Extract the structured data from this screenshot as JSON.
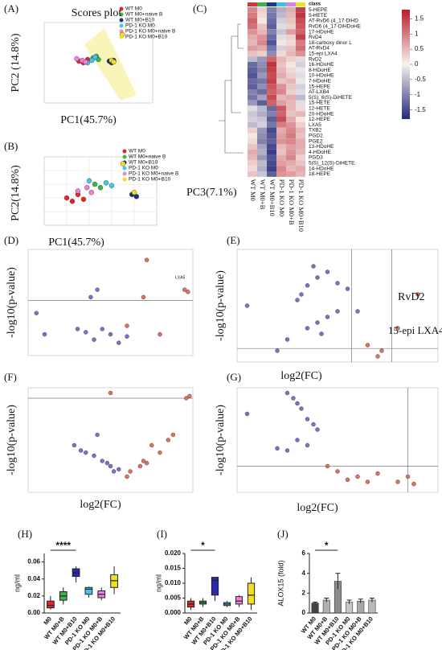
{
  "chart_data": [
    {
      "type": "scatter",
      "panel": "(A)",
      "title": "Scores plot",
      "xlabel": "PC1(45.7%)",
      "ylabel": "PC2 (14.8%)",
      "xlim": [
        0,
        100
      ],
      "ylim": [
        0,
        100
      ],
      "series": [
        {
          "name": "WT M0",
          "color": "#e8262a",
          "x": [
            32,
            36,
            40
          ],
          "y": [
            52,
            50,
            54
          ]
        },
        {
          "name": "WT M0+naive B",
          "color": "#3cb44b",
          "x": [
            45,
            48,
            50
          ],
          "y": [
            56,
            58,
            54
          ]
        },
        {
          "name": "WT M0+B10",
          "color": "#1f2f80",
          "x": [
            60,
            62,
            64
          ],
          "y": [
            52,
            50,
            53
          ]
        },
        {
          "name": "PD-1 KO M0",
          "color": "#40c8e8",
          "x": [
            40,
            44,
            47
          ],
          "y": [
            50,
            53,
            57
          ]
        },
        {
          "name": "PD-1 KO M0+naive B",
          "color": "#f080e0",
          "x": [
            30,
            35,
            38
          ],
          "y": [
            55,
            53,
            51
          ]
        },
        {
          "name": "PD-1 KO M0+B10",
          "color": "#f0e020",
          "x": [
            62,
            64,
            72
          ],
          "y": [
            53,
            51,
            85
          ]
        }
      ]
    },
    {
      "type": "scatter",
      "panel": "(B)",
      "xlabel": "PC1(45.7%)",
      "ylabel": "PC2(14.8%)",
      "zlabel": "PC3(7.1%)",
      "xlim": [
        0,
        100
      ],
      "ylim": [
        0,
        100
      ],
      "series": [
        {
          "name": "WT M0",
          "color": "#e8262a",
          "x": [
            20,
            25,
            30,
            35
          ],
          "y": [
            40,
            35,
            45,
            38
          ]
        },
        {
          "name": "WT M0+naive B",
          "color": "#3cb44b",
          "x": [
            45,
            50
          ],
          "y": [
            60,
            55
          ]
        },
        {
          "name": "WT M0+B10",
          "color": "#1f2f80",
          "x": [
            78,
            82
          ],
          "y": [
            45,
            42
          ]
        },
        {
          "name": "PD-1 KO M0",
          "color": "#40c8e8",
          "x": [
            40,
            55,
            60
          ],
          "y": [
            65,
            62,
            58
          ]
        },
        {
          "name": "PD-1 KO M0+naive B",
          "color": "#f080e0",
          "x": [
            30,
            38,
            42
          ],
          "y": [
            50,
            55,
            48
          ]
        },
        {
          "name": "PD-1 KO M0+B10",
          "color": "#f0e020",
          "x": [
            70,
            80
          ],
          "y": [
            90,
            48
          ]
        }
      ]
    },
    {
      "type": "heatmap",
      "panel": "(C)",
      "legend_title": "class",
      "class_colors": [
        "#e0303c",
        "#3cb44b",
        "#1f3b8f",
        "#3fc0e0",
        "#e080e0",
        "#f0e020"
      ],
      "columns": [
        "WT M0",
        "WT M0+B",
        "WT M0+B10",
        "PD-1 KO M0",
        "PD-1 KO M0+B",
        "PD-1 KO M0+B10"
      ],
      "rows": [
        "5-HEPE",
        "5-HETE",
        "AT-RvD6 (4_17-DiHD",
        "RvD6 (4_17-DiHDoHE",
        "17-HDoHE",
        "RvD4",
        "18-carboxy dinor L",
        "AT-RvD4",
        "15-epi LXA4",
        "RvD2",
        "16-HDoHE",
        "8-HDoHE",
        "10-HDoHE",
        "7-HDoHE",
        "15-HEPE",
        "AT-LXB4",
        "5(S)_6(S)-DiHETE",
        "15-HETE",
        "12-HETE",
        "20-HDoHE",
        "12-HEPE",
        "LXA5",
        "TXB2",
        "PGD2",
        "PGE2",
        "13-HDoHE",
        "4-HDoHE",
        "PGD3",
        "5(S)_12(S)-DiHETE",
        "14-HDoHE",
        "18-HEPE"
      ],
      "values": [
        [
          0.9,
          0.3,
          -1.0,
          -0.6,
          0.6,
          1.5
        ],
        [
          1.0,
          0.2,
          -1.1,
          -0.5,
          0.5,
          1.6
        ],
        [
          1.2,
          0.1,
          -1.2,
          -0.3,
          0.4,
          1.4
        ],
        [
          1.1,
          0.4,
          -1.3,
          -0.2,
          0.3,
          1.3
        ],
        [
          0.8,
          0.5,
          -1.0,
          -0.4,
          0.7,
          1.2
        ],
        [
          0.6,
          0.8,
          -1.2,
          -0.2,
          0.3,
          1.5
        ],
        [
          0.5,
          0.9,
          -1.4,
          0.1,
          0.2,
          1.0
        ],
        [
          0.7,
          0.6,
          -1.1,
          -0.3,
          0.4,
          1.1
        ],
        [
          0.4,
          0.3,
          -0.9,
          0.2,
          0.5,
          0.8
        ],
        [
          -0.5,
          -0.8,
          1.2,
          0.5,
          0.3,
          -0.2
        ],
        [
          -1.2,
          -0.9,
          1.6,
          0.4,
          0.1,
          -0.3
        ],
        [
          -1.3,
          -1.0,
          1.5,
          0.5,
          0.2,
          -0.1
        ],
        [
          -1.4,
          -0.8,
          1.4,
          0.6,
          0.3,
          -0.2
        ],
        [
          -1.2,
          -1.1,
          1.5,
          0.4,
          0.5,
          -0.1
        ],
        [
          -1.3,
          -0.9,
          1.3,
          0.8,
          0.4,
          -0.3
        ],
        [
          -1.0,
          -1.2,
          1.2,
          0.9,
          0.3,
          -0.2
        ],
        [
          -1.1,
          -0.7,
          1.4,
          0.5,
          0.6,
          -0.5
        ],
        [
          -0.8,
          -1.3,
          1.2,
          0.7,
          0.5,
          -0.2
        ],
        [
          -0.2,
          -0.5,
          -1.2,
          1.3,
          0.5,
          0.2
        ],
        [
          -0.4,
          -0.6,
          -1.0,
          1.2,
          0.4,
          0.5
        ],
        [
          -0.3,
          -0.4,
          -1.3,
          1.4,
          0.6,
          0.1
        ],
        [
          -0.5,
          -0.3,
          -1.1,
          1.0,
          0.8,
          0.3
        ],
        [
          0.3,
          -0.8,
          -1.5,
          0.6,
          0.9,
          0.5
        ],
        [
          0.1,
          -0.9,
          -1.4,
          0.7,
          1.0,
          0.4
        ],
        [
          0.2,
          -1.0,
          -1.3,
          0.8,
          0.9,
          0.6
        ],
        [
          0.4,
          -0.7,
          -1.5,
          0.5,
          0.7,
          0.6
        ],
        [
          0.6,
          -0.6,
          -1.6,
          0.4,
          0.8,
          0.5
        ],
        [
          0.5,
          -0.8,
          -1.4,
          0.6,
          0.9,
          0.3
        ],
        [
          0.3,
          -0.5,
          -1.5,
          0.7,
          0.6,
          0.4
        ],
        [
          0.2,
          -0.6,
          -1.6,
          0.9,
          0.5,
          0.6
        ],
        [
          0.4,
          -0.4,
          -1.3,
          0.8,
          0.7,
          0.5
        ]
      ],
      "clim": [
        -1.8,
        1.8
      ],
      "cticks": [
        1.5,
        1,
        0.5,
        0,
        -0.5,
        -1,
        -1.5
      ]
    },
    {
      "type": "scatter",
      "panel": "(D)",
      "ylabel": "-log10(p-value)",
      "xlim": [
        0,
        100
      ],
      "ylim": [
        0,
        100
      ],
      "hline": 52,
      "vlines": [],
      "point_labels": [
        "LXA5"
      ],
      "series": [
        {
          "color": "#7b6fd0",
          "x": [
            5,
            10,
            30,
            35,
            40,
            45,
            50,
            55,
            60,
            38,
            42
          ],
          "y": [
            40,
            20,
            25,
            22,
            15,
            25,
            20,
            12,
            18,
            55,
            62
          ]
        },
        {
          "color": "#e07060",
          "x": [
            95,
            97,
            72,
            70,
            60,
            80
          ],
          "y": [
            62,
            60,
            90,
            55,
            28,
            20
          ]
        }
      ]
    },
    {
      "type": "scatter",
      "panel": "(E)",
      "ylabel": "-log10(p-value)",
      "xlabel": "log2(FC)",
      "xlim": [
        0,
        100
      ],
      "ylim": [
        0,
        100
      ],
      "hline": 12,
      "vlines": [
        57,
        77
      ],
      "annotations": [
        "RvD2",
        "15-epi LXA4"
      ],
      "series": [
        {
          "color": "#7b6fd0",
          "x": [
            5,
            30,
            32,
            35,
            40,
            38,
            45,
            50,
            55,
            45,
            50,
            35,
            40,
            42,
            60,
            25,
            20
          ],
          "y": [
            50,
            55,
            60,
            68,
            75,
            85,
            80,
            70,
            65,
            40,
            45,
            30,
            35,
            25,
            45,
            20,
            10
          ]
        },
        {
          "color": "#e07060",
          "x": [
            65,
            70,
            90,
            72,
            80
          ],
          "y": [
            15,
            5,
            60,
            10,
            30
          ]
        }
      ]
    },
    {
      "type": "scatter",
      "panel": "(F)",
      "ylabel": "-log10(p-value)",
      "xlabel": "log2(FC)",
      "xlim": [
        0,
        100
      ],
      "ylim": [
        0,
        100
      ],
      "hline": 90,
      "vlines": [],
      "series": [
        {
          "color": "#7b6fd0",
          "x": [
            28,
            32,
            35,
            40,
            45,
            48,
            50,
            52,
            55,
            42
          ],
          "y": [
            45,
            40,
            38,
            35,
            30,
            28,
            25,
            20,
            22,
            55
          ]
        },
        {
          "color": "#e07060",
          "x": [
            60,
            62,
            68,
            70,
            72,
            75,
            80,
            85,
            88,
            96,
            98,
            50
          ],
          "y": [
            15,
            20,
            25,
            30,
            28,
            45,
            38,
            50,
            55,
            90,
            92,
            95
          ]
        }
      ]
    },
    {
      "type": "scatter",
      "panel": "(G)",
      "ylabel": "-log10(p-value)",
      "xlabel": "log2(FC)",
      "xlim": [
        0,
        100
      ],
      "ylim": [
        0,
        100
      ],
      "hline": 25,
      "vlines": [
        85
      ],
      "series": [
        {
          "color": "#7b6fd0",
          "x": [
            5,
            25,
            28,
            30,
            32,
            35,
            38,
            40,
            30,
            35,
            20,
            25
          ],
          "y": [
            75,
            95,
            90,
            85,
            80,
            70,
            65,
            60,
            50,
            45,
            42,
            40
          ]
        },
        {
          "color": "#e07060",
          "x": [
            45,
            50,
            55,
            60,
            65,
            70,
            80,
            85,
            88
          ],
          "y": [
            25,
            20,
            12,
            15,
            10,
            18,
            10,
            15,
            8
          ]
        }
      ]
    },
    {
      "type": "box",
      "panel": "(H)",
      "ylabel": "ng/ml",
      "annotation": "****",
      "categories": [
        "M0",
        "WT M0+B",
        "WT M0+B10",
        "PD-1 KO M0",
        "PD-1 KO M0+B",
        "PD-1 KO M0+B10"
      ],
      "colors": [
        "#e8262a",
        "#3cb44b",
        "#2a2ab0",
        "#40c8e8",
        "#f080e0",
        "#f0e020"
      ],
      "values": [
        [
          0.004,
          0.006,
          0.009,
          0.014,
          0.02
        ],
        [
          0.01,
          0.015,
          0.02,
          0.025,
          0.03
        ],
        [
          0.036,
          0.043,
          0.047,
          0.052,
          0.055
        ],
        [
          0.018,
          0.022,
          0.028,
          0.03,
          0.031
        ],
        [
          0.015,
          0.018,
          0.022,
          0.026,
          0.03
        ],
        [
          0.022,
          0.03,
          0.038,
          0.045,
          0.055
        ]
      ],
      "ylim": [
        0,
        0.07
      ],
      "yticks": [
        {
          "value": 0,
          "label": "0.00"
        },
        {
          "value": 0.02,
          "label": "0.02"
        },
        {
          "value": 0.04,
          "label": "0.04"
        },
        {
          "value": 0.06,
          "label": "0.06"
        }
      ]
    },
    {
      "type": "box",
      "panel": "(I)",
      "ylabel": "ng/ml",
      "annotation": "*",
      "categories": [
        "M0",
        "WT M0+B",
        "WT M0+B10",
        "PD-1 KO M0",
        "PD-1 KO M0+B",
        "PD-1 KO M0+B10"
      ],
      "colors": [
        "#e8262a",
        "#3cb44b",
        "#2a2ab0",
        "#40c8e8",
        "#f080e0",
        "#f0e020"
      ],
      "values": [
        [
          0.001,
          0.002,
          0.003,
          0.004,
          0.005
        ],
        [
          0.002,
          0.003,
          0.0035,
          0.004,
          0.005
        ],
        [
          0.004,
          0.006,
          0.011,
          0.012,
          0.012
        ],
        [
          0.002,
          0.0025,
          0.003,
          0.0035,
          0.004
        ],
        [
          0.002,
          0.003,
          0.004,
          0.0055,
          0.006
        ],
        [
          0.001,
          0.003,
          0.006,
          0.01,
          0.012
        ]
      ],
      "ylim": [
        0,
        0.02
      ],
      "yticks": [
        {
          "value": 0,
          "label": "0.000"
        },
        {
          "value": 0.005,
          "label": "0.005"
        },
        {
          "value": 0.01,
          "label": "0.010"
        },
        {
          "value": 0.015,
          "label": "0.015"
        },
        {
          "value": 0.02,
          "label": "0.020"
        }
      ]
    },
    {
      "type": "errbar",
      "panel": "(J)",
      "ylabel": "ALOX15 (fold)",
      "annotation": "*",
      "categories": [
        "WT M0",
        "WT M0+B",
        "WT M0+B10",
        "PD-1 KO M0",
        "PD-1 KO M0+B",
        "PD-1 KO M0+B10"
      ],
      "colors": [
        "#444444",
        "#b0b0b0",
        "#8c8c8c",
        "#c8c8c8",
        "#a8a8a8",
        "#b8b8b8"
      ],
      "values": [
        1,
        1.3,
        3.2,
        1.1,
        1.2,
        1.3
      ],
      "errors": [
        0.1,
        0.2,
        0.8,
        0.2,
        0.2,
        0.2
      ],
      "ylim": [
        0,
        6
      ],
      "yticks": [
        0,
        2,
        4,
        6
      ]
    }
  ]
}
